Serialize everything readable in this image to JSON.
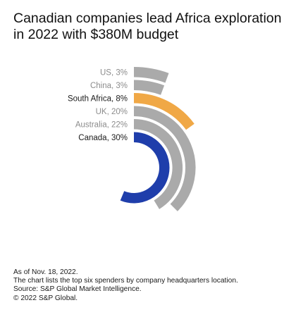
{
  "title": "Canadian companies lead Africa exploration in 2022 with $380M budget",
  "chart_data": {
    "type": "radial-bar",
    "title": "Canadian companies lead Africa exploration in 2022 with $380M budget",
    "unit": "%",
    "categories": [
      "US",
      "China",
      "South Africa",
      "UK",
      "Australia",
      "Canada"
    ],
    "values": [
      3,
      3,
      8,
      20,
      22,
      30
    ],
    "labels": [
      "US, 3%",
      "China, 3%",
      "South Africa, 8%",
      "UK, 20%",
      "Australia, 22%",
      "Canada, 30%"
    ],
    "emphasized": [
      false,
      false,
      true,
      false,
      false,
      true
    ],
    "colors": [
      "#aaaaaa",
      "#aaaaaa",
      "#f0a846",
      "#aaaaaa",
      "#aaaaaa",
      "#1f3eab"
    ],
    "max_value": 40
  },
  "footnotes": [
    "As of Nov. 18, 2022.",
    "The chart lists the top six spenders by company headquarters location.",
    "Source: S&P Global Market Intelligence.",
    "© 2022 S&P Global."
  ]
}
